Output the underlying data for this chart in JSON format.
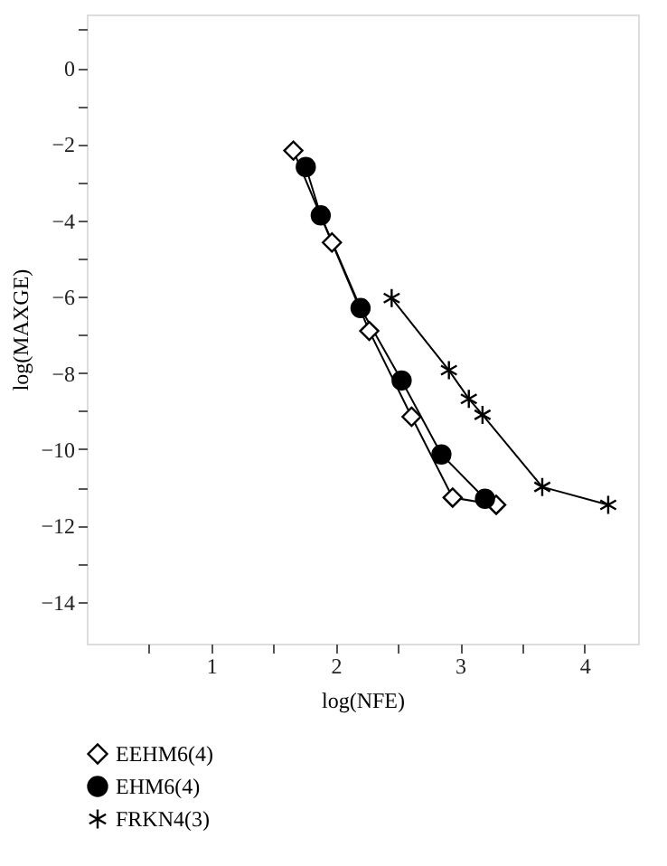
{
  "chart_data": {
    "type": "line",
    "xlabel": "log(NFE)",
    "ylabel": "log(MAXGE)",
    "series": [
      {
        "name": "EEHM6(4)",
        "color": "#000000",
        "marker": "diamond",
        "x": [
          1.66,
          1.97,
          2.27,
          2.61,
          2.94,
          3.29
        ],
        "values": [
          -2.17,
          -4.58,
          -6.9,
          -9.15,
          -11.27,
          -11.46
        ]
      },
      {
        "name": "EHM6(4)",
        "color": "#000000",
        "marker": "circle",
        "x": [
          1.76,
          1.88,
          2.2,
          2.53,
          2.85,
          3.2
        ],
        "values": [
          -2.6,
          -3.87,
          -6.3,
          -8.2,
          -10.14,
          -11.3
        ]
      },
      {
        "name": "FRKN4(3)",
        "color": "#000000",
        "marker": "cross",
        "x": [
          2.45,
          2.91,
          3.07,
          3.18,
          3.66,
          4.19
        ],
        "values": [
          -6.04,
          -7.93,
          -8.68,
          -9.1,
          -10.99,
          -11.46
        ]
      }
    ],
    "xlim": [
      0,
      4.43
    ],
    "ylim": [
      -15.1,
      1.4
    ],
    "xticks": [
      {
        "value": 0.5,
        "label": null
      },
      1,
      {
        "value": 1.5,
        "label": null
      },
      2,
      {
        "value": 2.5,
        "label": null
      },
      3,
      {
        "value": 3.5,
        "label": null
      },
      4
    ],
    "yticks": [
      {
        "value": 1,
        "label": null
      },
      0,
      {
        "value": -1,
        "label": null
      },
      -2,
      {
        "value": -3,
        "label": null
      },
      -4,
      {
        "value": -5,
        "label": null
      },
      -6,
      {
        "value": -7,
        "label": null
      },
      -8,
      {
        "value": -9,
        "label": null
      },
      -10,
      {
        "value": -11,
        "label": null
      },
      -12,
      {
        "value": -13,
        "label": null
      },
      -14
    ],
    "grid": false,
    "legend": "bottom",
    "line_style": "solid"
  }
}
